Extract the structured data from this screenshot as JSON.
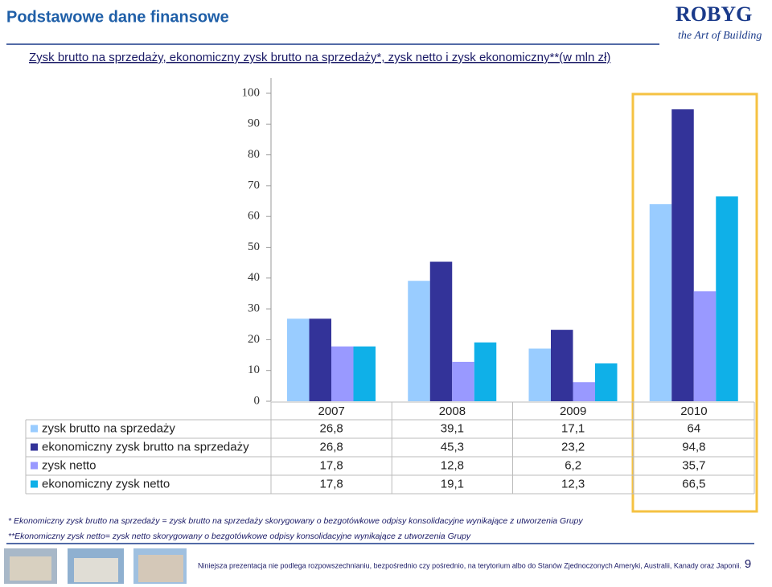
{
  "header": {
    "title": "Podstawowe dane finansowe",
    "logo": "ROBYG",
    "logo_tagline": "the Art of Building"
  },
  "chart_data": {
    "type": "bar",
    "title": "Zysk brutto na sprzedaży, ekonomiczny zysk brutto na sprzedaży*, zysk netto i zysk ekonomiczny**(w mln zł)",
    "categories": [
      "2007",
      "2008",
      "2009",
      "2010"
    ],
    "series": [
      {
        "name": "zysk brutto na sprzedaży",
        "color": "#99ccff",
        "values": [
          26.8,
          39.1,
          17.1,
          64
        ],
        "value_labels": [
          "26,8",
          "39,1",
          "17,1",
          "64"
        ]
      },
      {
        "name": "ekonomiczny zysk brutto na sprzedaży",
        "color": "#333399",
        "values": [
          26.8,
          45.3,
          23.2,
          94.8
        ],
        "value_labels": [
          "26,8",
          "45,3",
          "23,2",
          "94,8"
        ]
      },
      {
        "name": "zysk netto",
        "color": "#9999ff",
        "values": [
          17.8,
          12.8,
          6.2,
          35.7
        ],
        "value_labels": [
          "17,8",
          "12,8",
          "6,2",
          "35,7"
        ]
      },
      {
        "name": "ekonomiczny zysk netto",
        "color": "#0fb0e8",
        "values": [
          17.8,
          19.1,
          12.3,
          66.5
        ],
        "value_labels": [
          "17,8",
          "19,1",
          "12,3",
          "66,5"
        ]
      }
    ],
    "ylim": [
      0,
      100
    ],
    "yticks": [
      0,
      10,
      20,
      30,
      40,
      50,
      60,
      70,
      80,
      90,
      100
    ]
  },
  "footnotes": [
    "* Ekonomiczny zysk brutto na sprzedaży = zysk brutto na sprzedaży skorygowany o bezgotówkowe odpisy konsolidacyjne wynikające z utworzenia Grupy",
    "**Ekonomiczny zysk netto= zysk netto skorygowany o bezgotówkowe odpisy konsolidacyjne wynikające z utworzenia Grupy"
  ],
  "footer": {
    "disclaimer": "Niniejsza prezentacja nie podlega rozpowszechnianiu, bezpośrednio czy pośrednio, na terytorium albo do Stanów Zjednoczonych Ameryki, Australii, Kanady oraz Japonii.",
    "page_number": "9"
  }
}
